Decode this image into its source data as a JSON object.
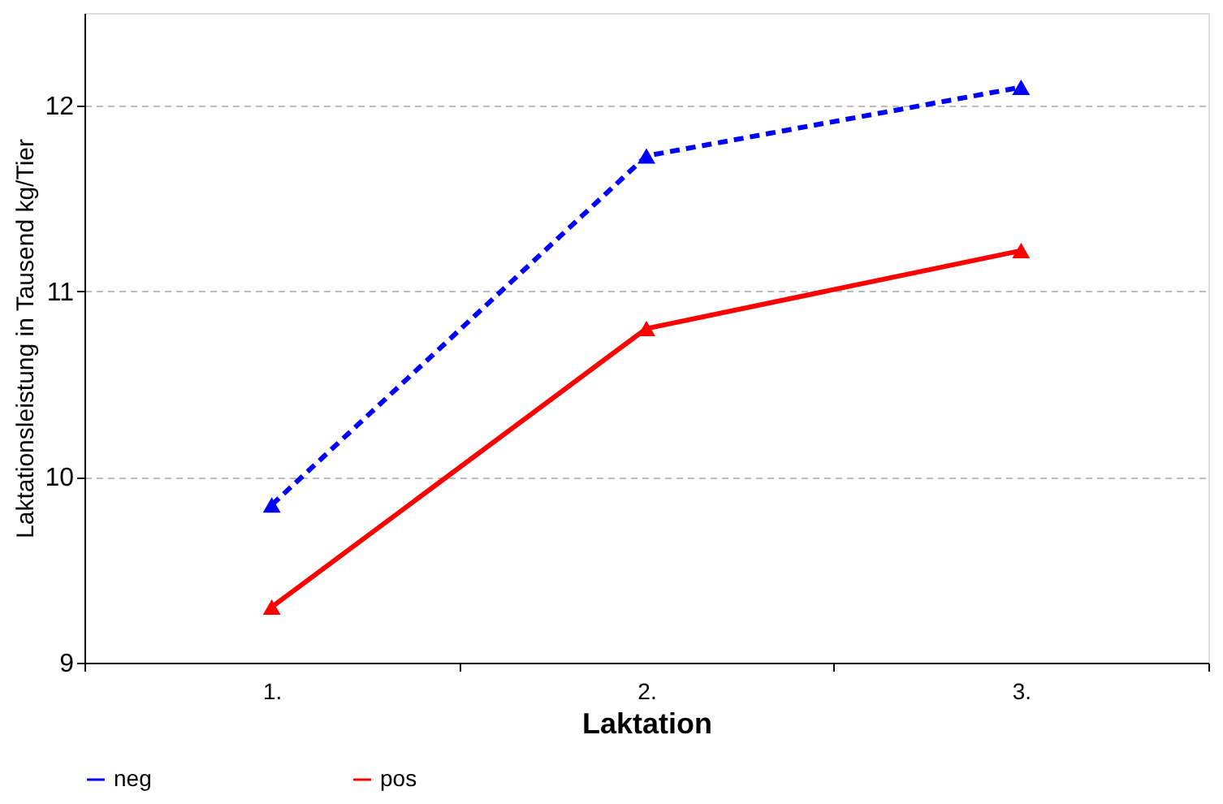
{
  "chart_data": {
    "type": "line",
    "xlabel": "Laktation",
    "ylabel": "Laktationsleistung in Tausend kg/Tier",
    "categories": [
      "1.",
      "2.",
      "3."
    ],
    "series": [
      {
        "name": "neg",
        "color": "#0000ff",
        "values": [
          9.85,
          11.73,
          12.1
        ],
        "line_style": "dashed"
      },
      {
        "name": "pos",
        "color": "#ff0000",
        "values": [
          9.3,
          10.8,
          11.22
        ],
        "line_style": "solid"
      }
    ],
    "ylim": [
      9,
      12.5
    ],
    "yticks": [
      9,
      10,
      11,
      12
    ],
    "grid": "y",
    "legend": "bottom",
    "marker": "triangle"
  }
}
